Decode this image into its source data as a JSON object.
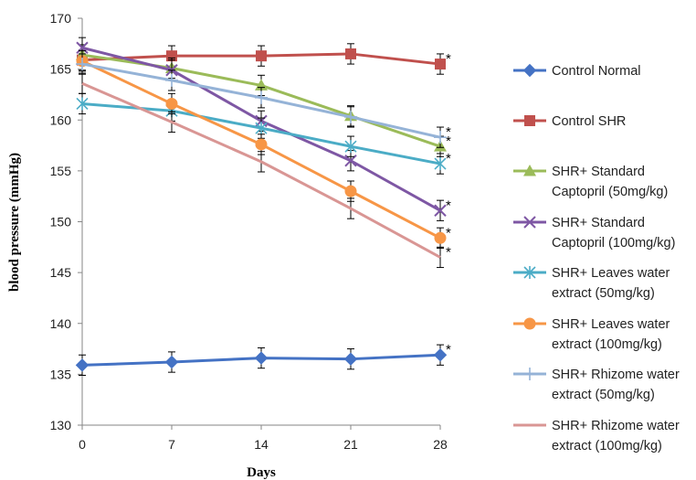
{
  "chart_data": {
    "type": "line",
    "xlabel": "Days",
    "ylabel": "blood pressure (mmHg)",
    "x": [
      0,
      7,
      14,
      21,
      28
    ],
    "xticks": [
      "0",
      "7",
      "14",
      "21",
      "28"
    ],
    "ylim": [
      130,
      170
    ],
    "yticks": [
      "130",
      "135",
      "140",
      "145",
      "150",
      "155",
      "160",
      "165",
      "170"
    ],
    "grid": false,
    "legend_position": "right",
    "series": [
      {
        "name": "Control Normal",
        "values": [
          135.9,
          136.2,
          136.6,
          136.5,
          136.9
        ],
        "errors": [
          1.0,
          1.0,
          1.0,
          1.0,
          1.0
        ],
        "color": "#4472C4",
        "marker": "diamond",
        "star": "*"
      },
      {
        "name": "Control SHR",
        "values": [
          165.9,
          166.3,
          166.3,
          166.5,
          165.5
        ],
        "errors": [
          1.0,
          1.0,
          1.0,
          1.0,
          1.0
        ],
        "color": "#C0504D",
        "marker": "square",
        "star": "*"
      },
      {
        "name": "SHR+ Standard Captopril (50mg/kg)",
        "values": [
          166.4,
          165.1,
          163.4,
          160.4,
          157.4
        ],
        "errors": [
          1.0,
          1.0,
          1.0,
          1.0,
          1.0
        ],
        "color": "#9BBB59",
        "marker": "triangle",
        "star": "*"
      },
      {
        "name": "SHR+ Standard Captopril (100mg/kg)",
        "values": [
          167.1,
          164.9,
          159.9,
          156.0,
          151.1
        ],
        "errors": [
          1.0,
          1.0,
          1.0,
          1.0,
          1.0
        ],
        "color": "#7E57A4",
        "marker": "x",
        "star": "*"
      },
      {
        "name": "SHR+ Leaves water extract (50mg/kg)",
        "values": [
          161.6,
          160.9,
          159.2,
          157.4,
          155.7
        ],
        "errors": [
          1.0,
          1.0,
          1.0,
          1.0,
          1.0
        ],
        "color": "#4BACC6",
        "marker": "asterisk",
        "star": "*"
      },
      {
        "name": "SHR+ Leaves water extract (100mg/kg)",
        "values": [
          165.8,
          161.6,
          157.6,
          153.0,
          148.4
        ],
        "errors": [
          1.0,
          1.0,
          1.0,
          1.0,
          1.0
        ],
        "color": "#F79646",
        "marker": "circle",
        "star": "*"
      },
      {
        "name": "SHR+ Rhizome water extract (50mg/kg)",
        "values": [
          165.5,
          163.9,
          162.2,
          160.3,
          158.3
        ],
        "errors": [
          1.0,
          1.0,
          1.0,
          1.0,
          1.0
        ],
        "color": "#95B3D7",
        "marker": "plus",
        "star": "*"
      },
      {
        "name": "SHR+ Rhizome water extract (100mg/kg)",
        "values": [
          163.6,
          159.8,
          155.9,
          151.3,
          146.5
        ],
        "errors": [
          1.0,
          1.0,
          1.0,
          1.0,
          1.0
        ],
        "color": "#D99694",
        "marker": "none",
        "star": "*"
      }
    ]
  },
  "legend": {
    "entries": [
      {
        "lines": [
          "Control Normal"
        ]
      },
      {
        "lines": [
          "Control SHR"
        ]
      },
      {
        "lines": [
          "SHR+ Standard",
          "Captopril (50mg/kg)"
        ]
      },
      {
        "lines": [
          "SHR+ Standard",
          "Captopril (100mg/kg)"
        ]
      },
      {
        "lines": [
          "SHR+ Leaves water",
          "extract (50mg/kg)"
        ]
      },
      {
        "lines": [
          "SHR+ Leaves water",
          "extract (100mg/kg)"
        ]
      },
      {
        "lines": [
          "SHR+ Rhizome water",
          "extract (50mg/kg)"
        ]
      },
      {
        "lines": [
          "SHR+ Rhizome water",
          "extract (100mg/kg)"
        ]
      }
    ]
  }
}
